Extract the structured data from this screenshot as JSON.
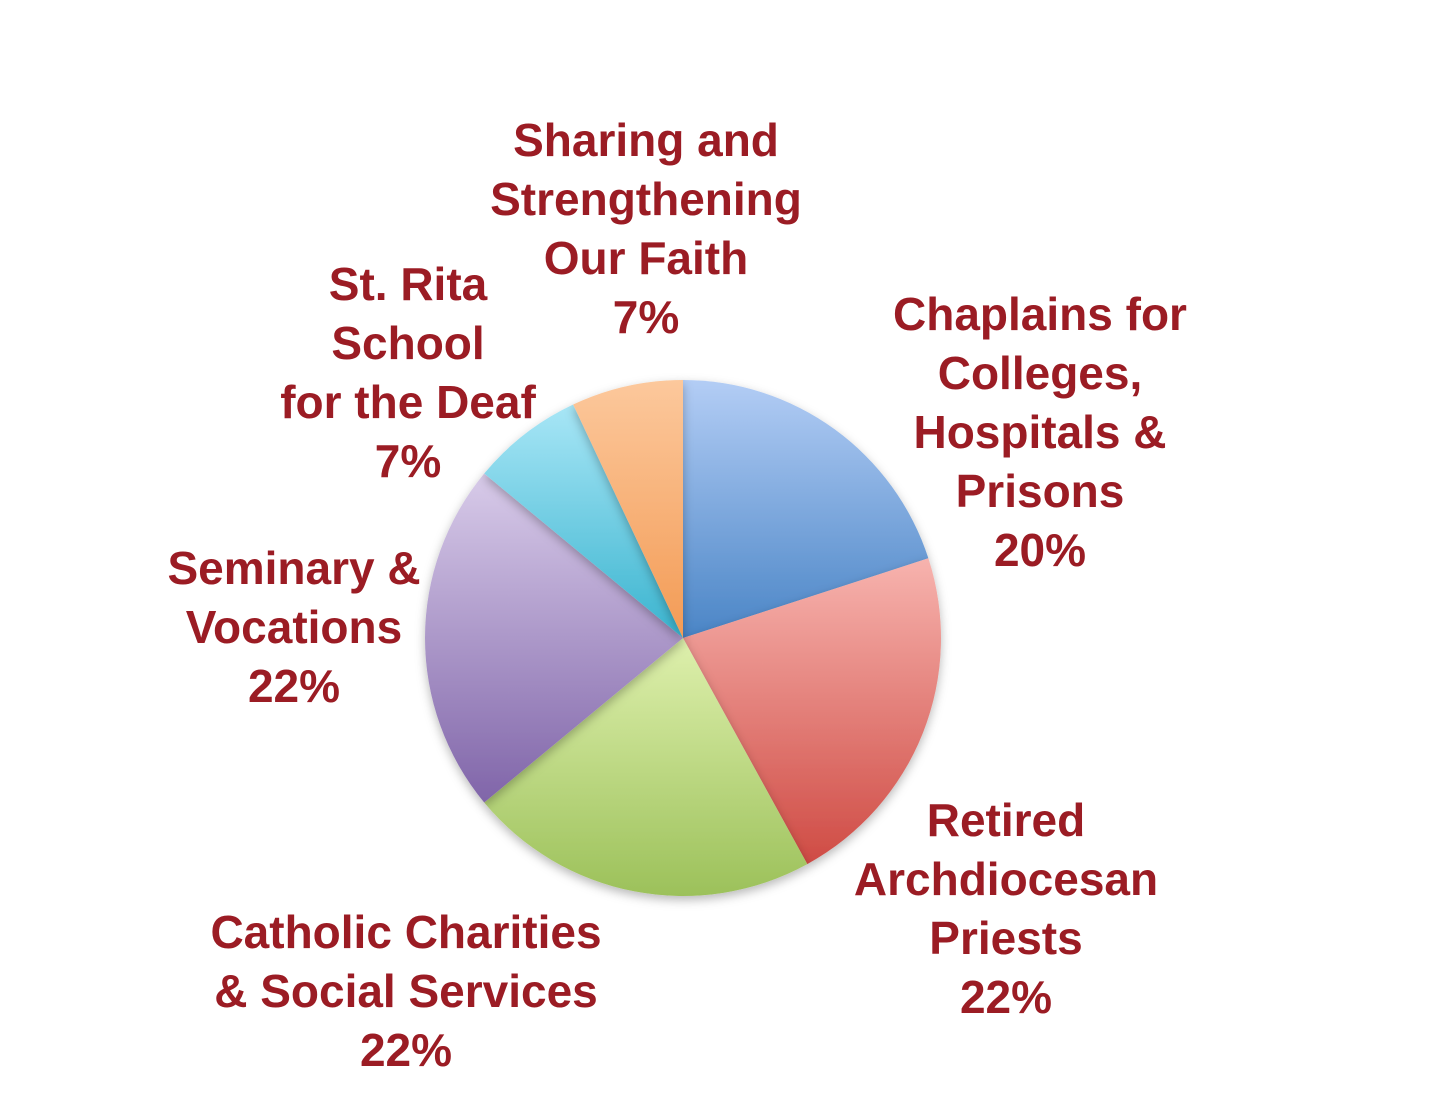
{
  "chart_data": {
    "type": "pie",
    "title": "",
    "start_angle_deg": 0,
    "direction": "clockwise",
    "label_color": "#9b1c24",
    "slices": [
      {
        "label_lines": [
          "Chaplains for",
          "Colleges,",
          "Hospitals &",
          "Prisons"
        ],
        "value": 20,
        "percent_label": "20%",
        "colors": [
          "#b3cdf5",
          "#4a85c6"
        ]
      },
      {
        "label_lines": [
          "Retired",
          "Archdiocesan",
          "Priests"
        ],
        "value": 22,
        "percent_label": "22%",
        "colors": [
          "#f7b3ae",
          "#cf4b44"
        ]
      },
      {
        "label_lines": [
          "Catholic Charities",
          "& Social Services"
        ],
        "value": 22,
        "percent_label": "22%",
        "colors": [
          "#def0ad",
          "#9cc15a"
        ]
      },
      {
        "label_lines": [
          "Seminary &",
          "Vocations"
        ],
        "value": 22,
        "percent_label": "22%",
        "colors": [
          "#d8cbe9",
          "#8065a9"
        ]
      },
      {
        "label_lines": [
          "St. Rita",
          "School",
          "for the Deaf"
        ],
        "value": 7,
        "percent_label": "7%",
        "colors": [
          "#a8e6f6",
          "#3ab4cf"
        ]
      },
      {
        "label_lines": [
          "Sharing and",
          "Strengthening",
          "Our Faith"
        ],
        "value": 7,
        "percent_label": "7%",
        "colors": [
          "#fcc89c",
          "#f39b55"
        ]
      }
    ]
  }
}
